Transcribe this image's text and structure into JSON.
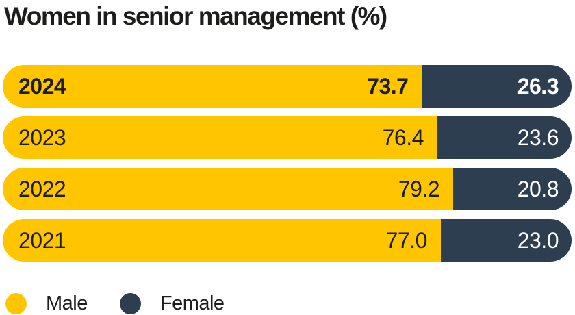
{
  "title": "Women in senior management (%)",
  "colors": {
    "male": "#ffc600",
    "female": "#2c3e50",
    "title_text": "#1d1d1b",
    "value_on_yellow": "#1d1d1b",
    "value_on_navy": "#ffffff",
    "background": "#ffffff"
  },
  "legend": {
    "male_label": "Male",
    "female_label": "Female"
  },
  "chart_data": {
    "type": "bar",
    "orientation": "horizontal",
    "stacked": true,
    "title": "Women in senior management (%)",
    "categories": [
      "2024",
      "2023",
      "2022",
      "2021"
    ],
    "series": [
      {
        "name": "Male",
        "color": "#ffc600",
        "values": [
          73.7,
          76.4,
          79.2,
          77.0
        ]
      },
      {
        "name": "Female",
        "color": "#2c3e50",
        "values": [
          26.3,
          23.6,
          20.8,
          23.0
        ]
      }
    ],
    "xlim": [
      0,
      100
    ],
    "grid": false,
    "legend_position": "bottom-left",
    "value_labels_shown": true,
    "rows": [
      {
        "year": "2024",
        "male": 73.7,
        "male_label": "73.7",
        "female": 26.3,
        "female_label": "26.3",
        "emphasized": true
      },
      {
        "year": "2023",
        "male": 76.4,
        "male_label": "76.4",
        "female": 23.6,
        "female_label": "23.6",
        "emphasized": false
      },
      {
        "year": "2022",
        "male": 79.2,
        "male_label": "79.2",
        "female": 20.8,
        "female_label": "20.8",
        "emphasized": false
      },
      {
        "year": "2021",
        "male": 77.0,
        "male_label": "77.0",
        "female": 23.0,
        "female_label": "23.0",
        "emphasized": false
      }
    ]
  }
}
